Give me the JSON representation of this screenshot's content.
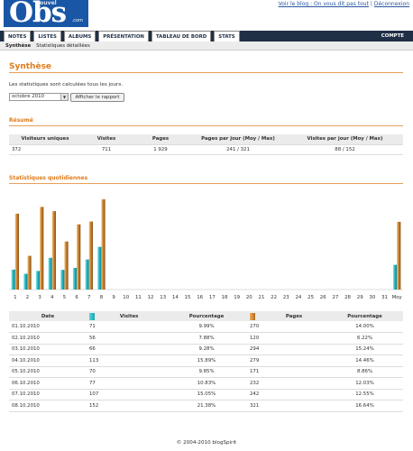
{
  "header": {
    "logo_text": "Obs",
    "logo_small": "nouvel",
    "logo_sub": ".com",
    "link_blog": "Voir le blog : On vous dit pas tout",
    "separator": "|",
    "link_logout": "Déconnexion"
  },
  "nav": {
    "tabs": [
      "NOTES",
      "LISTES",
      "ALBUMS",
      "PRÉSENTATION",
      "TABLEAU DE BORD",
      "STATS"
    ],
    "right_label": "COMPTE"
  },
  "subnav": {
    "items": [
      "Synthèse",
      "Statistiques détaillées"
    ]
  },
  "page": {
    "title": "Synthèse",
    "description": "Les statistiques sont calculées tous les jours.",
    "month_select": "octobre 2010",
    "report_button": "Afficher le rapport",
    "summary_heading": "Résumé",
    "daily_heading": "Statistiques quotidiennes"
  },
  "summary": {
    "headers": [
      "Visiteurs uniques",
      "Visites",
      "Pages",
      "Pages par jour (Moy / Max)",
      "Visites par jour (Moy / Max)"
    ],
    "values": [
      "372",
      "711",
      "1 929",
      "241 / 321",
      "88 / 152"
    ]
  },
  "chart_data": {
    "type": "bar",
    "categories": [
      "1",
      "2",
      "3",
      "4",
      "5",
      "6",
      "7",
      "8",
      "9",
      "10",
      "11",
      "12",
      "13",
      "14",
      "15",
      "16",
      "17",
      "18",
      "19",
      "20",
      "21",
      "22",
      "23",
      "24",
      "25",
      "26",
      "27",
      "28",
      "29",
      "30",
      "31",
      "Moy"
    ],
    "series": [
      {
        "name": "Visites",
        "values": [
          71,
          56,
          66,
          113,
          70,
          77,
          107,
          152,
          0,
          0,
          0,
          0,
          0,
          0,
          0,
          0,
          0,
          0,
          0,
          0,
          0,
          0,
          0,
          0,
          0,
          0,
          0,
          0,
          0,
          0,
          0,
          88
        ],
        "color": "#20b0bb"
      },
      {
        "name": "Pages",
        "values": [
          270,
          120,
          294,
          279,
          171,
          232,
          242,
          321,
          0,
          0,
          0,
          0,
          0,
          0,
          0,
          0,
          0,
          0,
          0,
          0,
          0,
          0,
          0,
          0,
          0,
          0,
          0,
          0,
          0,
          0,
          0,
          241
        ],
        "color": "#c47b2a"
      }
    ],
    "colors": {
      "visits": "#20b0bb",
      "pages": "#c47b2a"
    }
  },
  "daily": {
    "headers": [
      "Date",
      "Visites",
      "Pourcentage",
      "Pages",
      "Pourcentage"
    ],
    "rows": [
      [
        "01.10.2010",
        "71",
        "9.99%",
        "270",
        "14.00%"
      ],
      [
        "02.10.2010",
        "56",
        "7.88%",
        "120",
        "6.22%"
      ],
      [
        "03.10.2010",
        "66",
        "9.28%",
        "294",
        "15.24%"
      ],
      [
        "04.10.2010",
        "113",
        "15.89%",
        "279",
        "14.46%"
      ],
      [
        "05.10.2010",
        "70",
        "9.85%",
        "171",
        "8.86%"
      ],
      [
        "06.10.2010",
        "77",
        "10.83%",
        "232",
        "12.03%"
      ],
      [
        "07.10.2010",
        "107",
        "15.05%",
        "242",
        "12.55%"
      ],
      [
        "08.10.2010",
        "152",
        "21.38%",
        "321",
        "16.64%"
      ]
    ]
  },
  "footer": {
    "text": "© 2004-2010 blogSpirit"
  }
}
